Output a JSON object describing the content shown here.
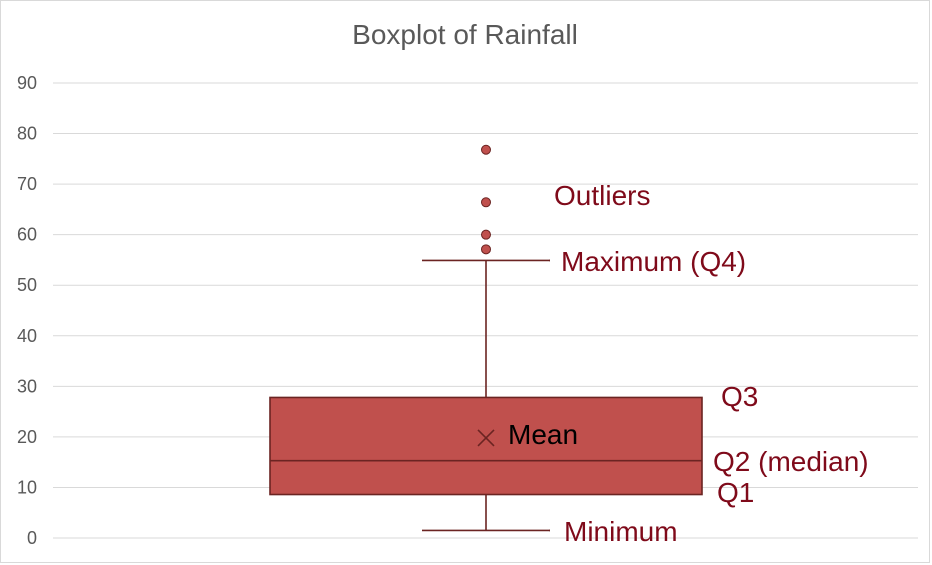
{
  "chart_data": {
    "type": "box",
    "title": "Boxplot of Rainfall",
    "xlabel": "",
    "ylabel": "",
    "ylim": [
      0,
      90
    ],
    "yticks": [
      0,
      10,
      20,
      30,
      40,
      50,
      60,
      70,
      80,
      90
    ],
    "grid": true,
    "box": {
      "min": 1.5,
      "q1": 8.6,
      "median": 15.3,
      "q3": 27.8,
      "max": 54.9,
      "mean": 19.8,
      "outliers": [
        57.1,
        60.0,
        66.4,
        76.8
      ]
    },
    "annotations": {
      "outliers": "Outliers",
      "maximum": "Maximum (Q4)",
      "q3": "Q3",
      "mean": "Mean",
      "median": "Q2 (median)",
      "q1": "Q1",
      "minimum": "Minimum"
    },
    "colors": {
      "box_fill": "#c0504d",
      "box_stroke": "#6b2422",
      "outlier_fill": "#c0504d",
      "annotation_text": "#7f0a1a",
      "mean_text": "#000000",
      "grid": "#d9d9d9",
      "axis_text": "#595959"
    }
  }
}
